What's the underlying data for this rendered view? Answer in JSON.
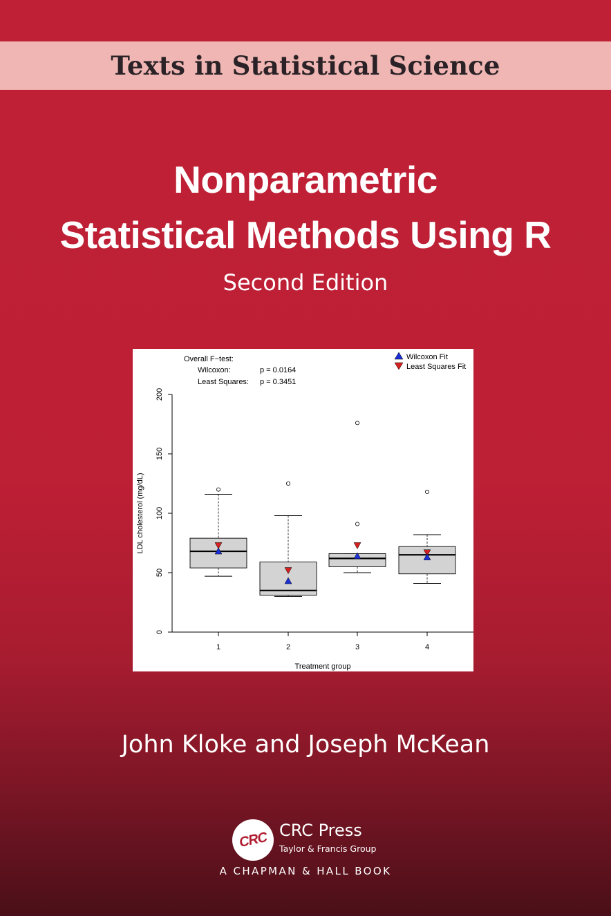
{
  "series": "Texts in Statistical Science",
  "title_line1": "Nonparametric",
  "title_line2": "Statistical Methods Using R",
  "edition": "Second Edition",
  "authors": "John Kloke and Joseph McKean",
  "publisher": {
    "logo_text": "CRC",
    "name": "CRC Press",
    "group": "Taylor & Francis Group",
    "imprint": "A CHAPMAN & HALL BOOK"
  },
  "colors": {
    "cover_red": "#c02036",
    "band_pink": "#efb6b3",
    "wilcoxon_marker": "#1a2fd6",
    "ls_marker": "#d62020",
    "box_fill": "#d3d3d3"
  },
  "chart_data": {
    "type": "boxplot",
    "title": "",
    "xlabel": "Treatment group",
    "ylabel": "LDL cholesterol (mg/dL)",
    "ylim": [
      0,
      200
    ],
    "yticks": [
      0,
      50,
      100,
      150,
      200
    ],
    "categories": [
      "1",
      "2",
      "3",
      "4"
    ],
    "boxes": [
      {
        "whisker_low": 47,
        "q1": 54,
        "median": 68,
        "q3": 79,
        "whisker_high": 116,
        "outliers": [
          120
        ]
      },
      {
        "whisker_low": 30,
        "q1": 31,
        "median": 35,
        "q3": 59,
        "whisker_high": 98,
        "outliers": [
          125
        ]
      },
      {
        "whisker_low": 50,
        "q1": 55,
        "median": 62,
        "q3": 66,
        "whisker_high": 66,
        "outliers": [
          91,
          176
        ]
      },
      {
        "whisker_low": 41,
        "q1": 49,
        "median": 65,
        "q3": 72,
        "whisker_high": 82,
        "outliers": [
          118
        ]
      }
    ],
    "series": [
      {
        "name": "Wilcoxon Fit",
        "marker": "triangle-up",
        "values": [
          68,
          43,
          64,
          63
        ]
      },
      {
        "name": "Least Squares Fit",
        "marker": "triangle-down",
        "values": [
          73,
          52,
          73,
          67
        ]
      }
    ],
    "legend_position": "top-right",
    "annotation": {
      "heading": "Overall F−test:",
      "rows": [
        {
          "label": "Wilcoxon:",
          "value": "p = 0.0164"
        },
        {
          "label": "Least Squares:",
          "value": "p = 0.3451"
        }
      ]
    }
  }
}
